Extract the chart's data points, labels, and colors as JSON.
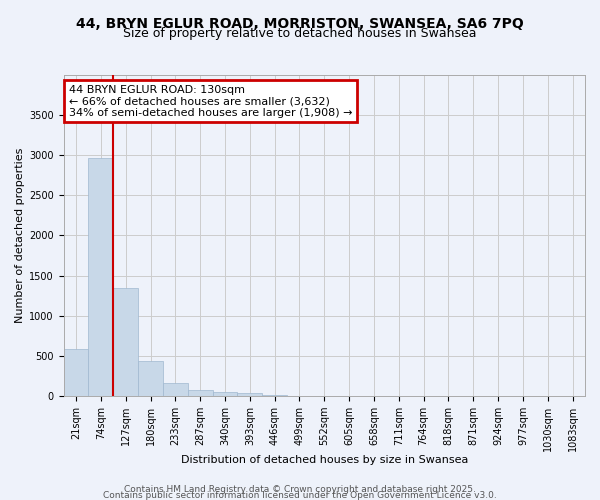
{
  "title_line1": "44, BRYN EGLUR ROAD, MORRISTON, SWANSEA, SA6 7PQ",
  "title_line2": "Size of property relative to detached houses in Swansea",
  "xlabel": "Distribution of detached houses by size in Swansea",
  "ylabel": "Number of detached properties",
  "categories": [
    "21sqm",
    "74sqm",
    "127sqm",
    "180sqm",
    "233sqm",
    "287sqm",
    "340sqm",
    "393sqm",
    "446sqm",
    "499sqm",
    "552sqm",
    "605sqm",
    "658sqm",
    "711sqm",
    "764sqm",
    "818sqm",
    "871sqm",
    "924sqm",
    "977sqm",
    "1030sqm",
    "1083sqm"
  ],
  "values": [
    580,
    2960,
    1350,
    430,
    155,
    75,
    50,
    30,
    5,
    0,
    0,
    0,
    0,
    0,
    0,
    0,
    0,
    0,
    0,
    0,
    0
  ],
  "bar_color": "#c8d8e8",
  "bar_edge_color": "#a0b8d0",
  "vline_color": "#cc0000",
  "annotation_text": "44 BRYN EGLUR ROAD: 130sqm\n← 66% of detached houses are smaller (3,632)\n34% of semi-detached houses are larger (1,908) →",
  "annotation_box_color": "#cc0000",
  "annotation_text_color": "#000000",
  "ylim": [
    0,
    4000
  ],
  "yticks": [
    0,
    500,
    1000,
    1500,
    2000,
    2500,
    3000,
    3500
  ],
  "grid_color": "#cccccc",
  "background_color": "#eef2fa",
  "footer_line1": "Contains HM Land Registry data © Crown copyright and database right 2025.",
  "footer_line2": "Contains public sector information licensed under the Open Government Licence v3.0.",
  "title_fontsize": 10,
  "subtitle_fontsize": 9,
  "axis_label_fontsize": 8,
  "tick_fontsize": 7,
  "annotation_fontsize": 8,
  "footer_fontsize": 6.5
}
